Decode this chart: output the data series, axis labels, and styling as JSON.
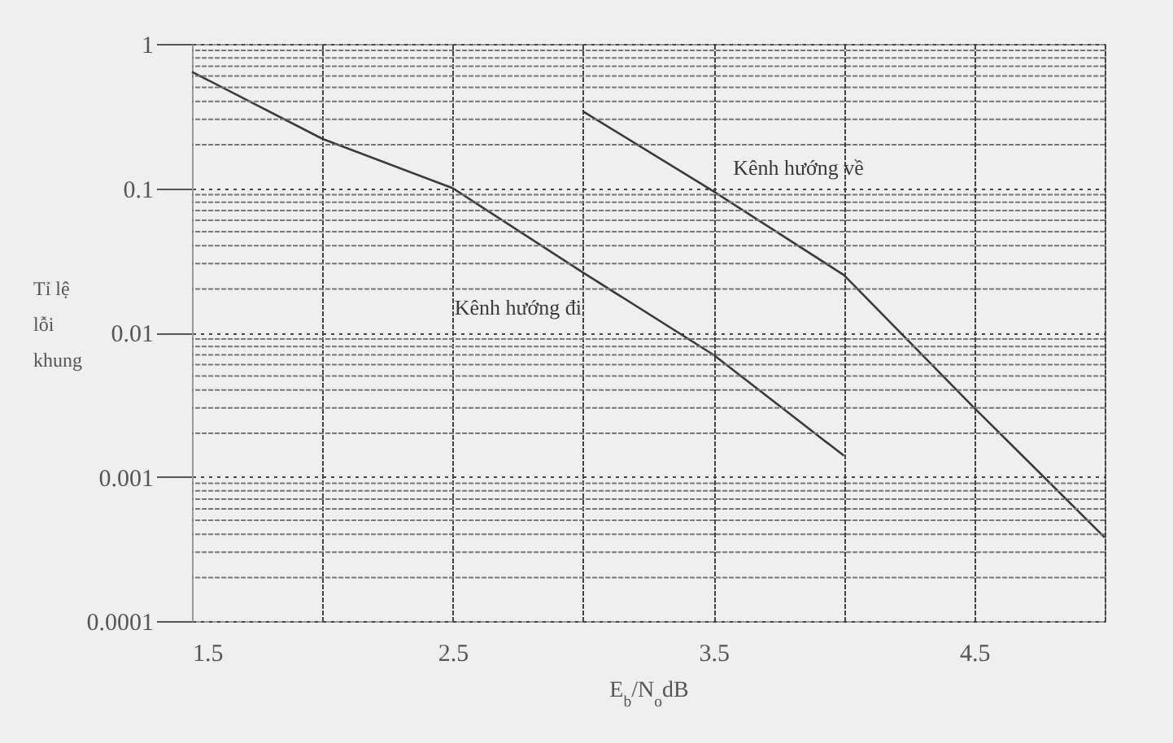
{
  "chart_data": {
    "type": "line",
    "xlabel": "E$_{b}$/N$_{o}$dB",
    "ylabel": "Tỉ lệ\nlỗi\nkhung",
    "log": "y",
    "grid": true,
    "legend": false,
    "marker": "none",
    "line_style": "solid",
    "xlim": [
      1.5,
      5
    ],
    "xticks": [
      1.5,
      {
        "value": 2,
        "label": null
      },
      2.5,
      {
        "value": 3,
        "label": null
      },
      3.5,
      {
        "value": 4,
        "label": null
      },
      4.5,
      {
        "value": 5,
        "label": null
      }
    ],
    "ylim": [
      0.0001,
      1
    ],
    "yticks": [
      0.0001,
      0.001,
      0.01,
      0.1,
      1
    ],
    "series": [
      {
        "name": "Kênh hướng đi",
        "color": "#3a3a3a",
        "x": [
          1.5,
          2,
          2.5,
          3,
          3.5,
          4
        ],
        "values": [
          0.64,
          0.22,
          0.1,
          0.026,
          0.007,
          0.0014
        ]
      },
      {
        "name": "Kênh hướng về",
        "color": "#3a3a3a",
        "x": [
          3,
          3.5,
          4,
          4.5,
          5
        ],
        "values": [
          0.34,
          0.095,
          0.025,
          0.003,
          0.00038
        ]
      }
    ]
  }
}
